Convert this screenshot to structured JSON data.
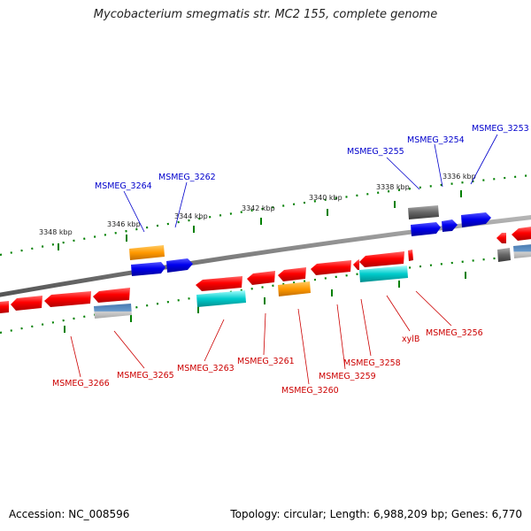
{
  "title": "Mycobacterium smegmatis str. MC2 155, complete genome",
  "accession": "Accession: NC_008596",
  "summary": "Topology: circular; Length: 6,988,209 bp; Genes: 6,770",
  "colors": {
    "cds": "#ff0000",
    "cds_secondary": "#00cccc",
    "cds_orange": "#ff9900",
    "other": "#6699cc",
    "gray_feature": "#666666",
    "blue_feature": "#0000ee",
    "label_top": "#0000cc",
    "label_bottom": "#cc0000",
    "backbone": "#7f7f7f",
    "ticks": "#008000"
  },
  "scale_ticks": [
    "3348 kbp",
    "3346 kbp",
    "3344 kbp",
    "3342 kbp",
    "3340 kbp",
    "3338 kbp",
    "3336 kbp"
  ],
  "top_labels": [
    "MSMEG_3264",
    "MSMEG_3262",
    "MSMEG_3255",
    "MSMEG_3254",
    "MSMEG_3253"
  ],
  "bottom_labels": [
    "MSMEG_3266",
    "MSMEG_3265",
    "MSMEG_3263",
    "MSMEG_3261",
    "MSMEG_3260",
    "MSMEG_3259",
    "MSMEG_3258",
    "xylB",
    "MSMEG_3256"
  ]
}
